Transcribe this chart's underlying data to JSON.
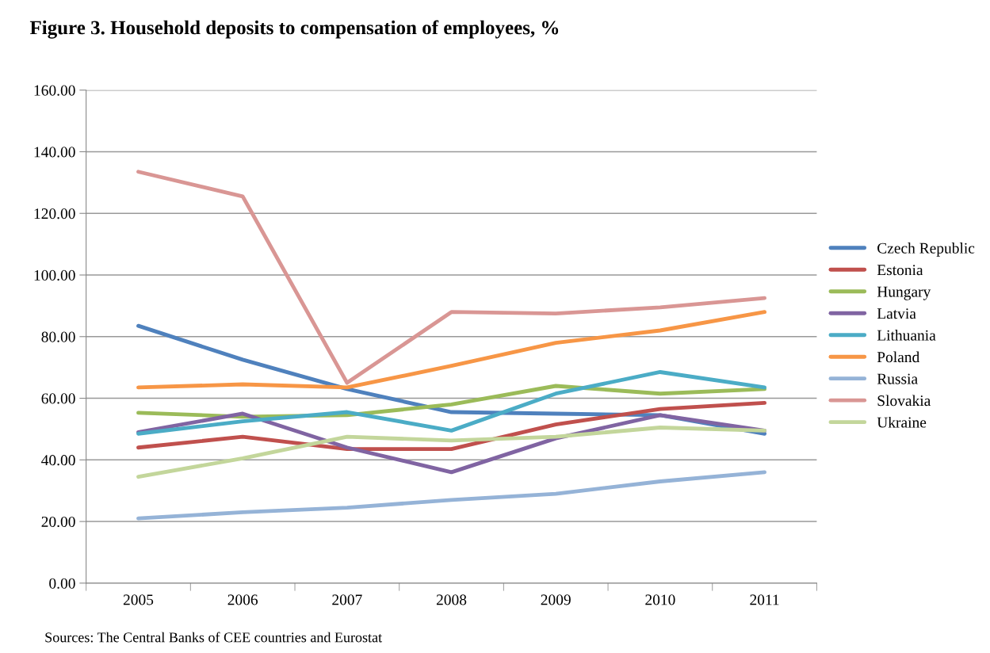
{
  "chart_data": {
    "type": "line",
    "title": "Figure 3. Household deposits to compensation of employees, %",
    "categories": [
      "2005",
      "2006",
      "2007",
      "2008",
      "2009",
      "2010",
      "2011"
    ],
    "series": [
      {
        "name": "Czech Republic",
        "color": "#4f81bd",
        "values": [
          83.5,
          72.5,
          63,
          55.5,
          55,
          54.5,
          48.5
        ]
      },
      {
        "name": "Estonia",
        "color": "#c0504d",
        "values": [
          44,
          47.5,
          43.5,
          43.5,
          51.5,
          56.5,
          58.5
        ]
      },
      {
        "name": "Hungary",
        "color": "#9bbb59",
        "values": [
          55.3,
          54,
          54.5,
          58,
          64,
          61.5,
          63
        ]
      },
      {
        "name": "Latvia",
        "color": "#8064a2",
        "values": [
          49,
          55,
          44,
          36,
          47,
          54.5,
          49.5
        ]
      },
      {
        "name": "Lithuania",
        "color": "#4bacc6",
        "values": [
          48.5,
          52.5,
          55.5,
          49.5,
          61.5,
          68.5,
          63.5
        ]
      },
      {
        "name": "Poland",
        "color": "#f79646",
        "values": [
          63.5,
          64.5,
          63.5,
          70.5,
          78,
          82,
          88
        ]
      },
      {
        "name": "Russia",
        "color": "#95b3d7",
        "values": [
          21,
          23,
          24.5,
          27,
          29,
          33,
          36
        ]
      },
      {
        "name": "Slovakia",
        "color": "#d99694",
        "values": [
          133.5,
          125.5,
          65,
          88,
          87.5,
          89.5,
          92.5
        ]
      },
      {
        "name": "Ukraine",
        "color": "#c3d69b",
        "values": [
          34.5,
          40.5,
          47.5,
          46.3,
          47.5,
          50.5,
          49.5
        ]
      }
    ],
    "ylim": [
      0,
      160
    ],
    "yticks": [
      {
        "value": 0,
        "label": "0.00"
      },
      {
        "value": 20,
        "label": "20.00"
      },
      {
        "value": 40,
        "label": "40.00"
      },
      {
        "value": 60,
        "label": "60.00"
      },
      {
        "value": 80,
        "label": "80.00"
      },
      {
        "value": 100,
        "label": "100.00"
      },
      {
        "value": 120,
        "label": "120.00"
      },
      {
        "value": 140,
        "label": "140.00"
      },
      {
        "value": 160,
        "label": "160.00"
      }
    ],
    "grid": "y",
    "legend": "right",
    "marker": "none",
    "line_style": "solid",
    "annotations": [
      "Sources: The Central Banks of CEE countries and Eurostat"
    ]
  }
}
